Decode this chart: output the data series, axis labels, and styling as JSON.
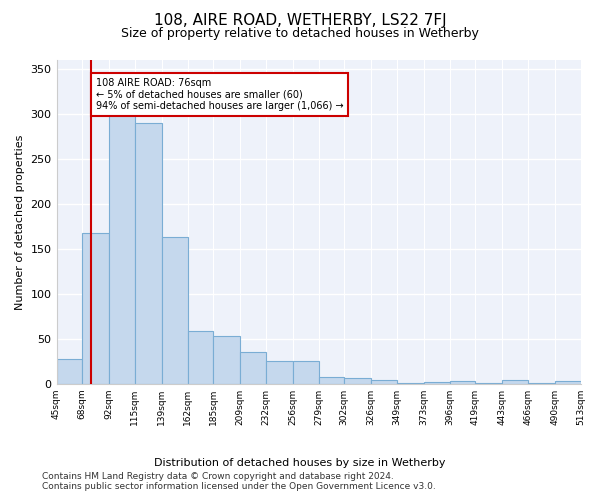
{
  "title": "108, AIRE ROAD, WETHERBY, LS22 7FJ",
  "subtitle": "Size of property relative to detached houses in Wetherby",
  "xlabel": "Distribution of detached houses by size in Wetherby",
  "ylabel": "Number of detached properties",
  "bar_color": "#c5d8ed",
  "bar_edge_color": "#7aadd4",
  "background_color": "#eef2fa",
  "grid_color": "#ffffff",
  "vline_x": 76,
  "vline_color": "#cc0000",
  "annotation_box_color": "#cc0000",
  "annotation_text": "108 AIRE ROAD: 76sqm\n← 5% of detached houses are smaller (60)\n94% of semi-detached houses are larger (1,066) →",
  "bins": [
    45,
    68,
    92,
    115,
    139,
    162,
    185,
    209,
    232,
    256,
    279,
    302,
    326,
    349,
    373,
    396,
    419,
    443,
    466,
    490,
    513
  ],
  "bin_labels": [
    "45sqm",
    "68sqm",
    "92sqm",
    "115sqm",
    "139sqm",
    "162sqm",
    "185sqm",
    "209sqm",
    "232sqm",
    "256sqm",
    "279sqm",
    "302sqm",
    "326sqm",
    "349sqm",
    "373sqm",
    "396sqm",
    "419sqm",
    "443sqm",
    "466sqm",
    "490sqm",
    "513sqm"
  ],
  "bar_heights": [
    28,
    168,
    327,
    290,
    163,
    59,
    53,
    35,
    25,
    25,
    8,
    6,
    4,
    1,
    2,
    3,
    1,
    4,
    1,
    3
  ],
  "ylim": [
    0,
    360
  ],
  "yticks": [
    0,
    50,
    100,
    150,
    200,
    250,
    300,
    350
  ],
  "footer1": "Contains HM Land Registry data © Crown copyright and database right 2024.",
  "footer2": "Contains public sector information licensed under the Open Government Licence v3.0."
}
